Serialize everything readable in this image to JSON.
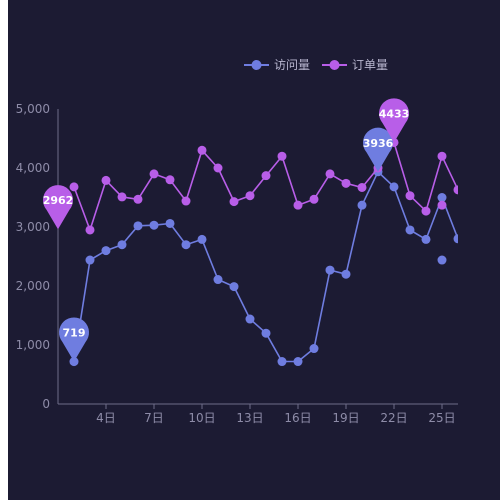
{
  "chart_data": {
    "type": "line",
    "x_labels": [
      "4日",
      "7日",
      "10日",
      "13日",
      "16日",
      "19日",
      "22日",
      "25日"
    ],
    "x_label_days": [
      4,
      7,
      10,
      13,
      16,
      19,
      22,
      25
    ],
    "x_range": [
      1,
      26
    ],
    "ylim": [
      0,
      5000
    ],
    "y_ticks": [
      0,
      1000,
      2000,
      3000,
      4000,
      5000
    ],
    "y_tick_labels": [
      "0",
      "1,000",
      "2,000",
      "3,000",
      "4,000",
      "5,000"
    ],
    "legend_position": "top-center",
    "grid": false,
    "series": [
      {
        "name": "访问量",
        "color": "#6f7de0",
        "days": [
          2,
          3,
          4,
          5,
          6,
          7,
          8,
          9,
          10,
          11,
          12,
          13,
          14,
          15,
          16,
          17,
          18,
          19,
          20,
          21,
          22,
          23,
          24,
          25,
          26
        ],
        "values": [
          719,
          2440,
          2600,
          2700,
          3020,
          3030,
          3060,
          2700,
          2790,
          2110,
          1990,
          1440,
          1200,
          720,
          720,
          940,
          2270,
          2200,
          3370,
          3936,
          3680,
          2950,
          2790,
          3500,
          2800
        ],
        "extra_points": [
          {
            "day": 25,
            "value": 2440
          }
        ],
        "max_marker": {
          "day": 21,
          "value": 3936,
          "label": "3936"
        },
        "min_marker": {
          "day": 2,
          "value": 719,
          "label": "719"
        }
      },
      {
        "name": "订单量",
        "color": "#b85ee8",
        "days": [
          2,
          3,
          4,
          5,
          6,
          7,
          8,
          9,
          10,
          11,
          12,
          13,
          14,
          15,
          16,
          17,
          18,
          19,
          20,
          21,
          22,
          23,
          24,
          25,
          26
        ],
        "values": [
          3680,
          2950,
          3790,
          3510,
          3470,
          3900,
          3800,
          3440,
          4300,
          4000,
          3430,
          3530,
          3870,
          4200,
          3370,
          3470,
          3900,
          3740,
          3670,
          4000,
          4433,
          3530,
          3270,
          4200,
          3630
        ],
        "extra_points": [
          {
            "day": 25,
            "value": 3370
          }
        ],
        "max_marker": {
          "day": 22,
          "value": 4433,
          "label": "4433"
        },
        "min_marker": {
          "day": 1,
          "value": 2962,
          "label": "2962"
        }
      }
    ]
  }
}
